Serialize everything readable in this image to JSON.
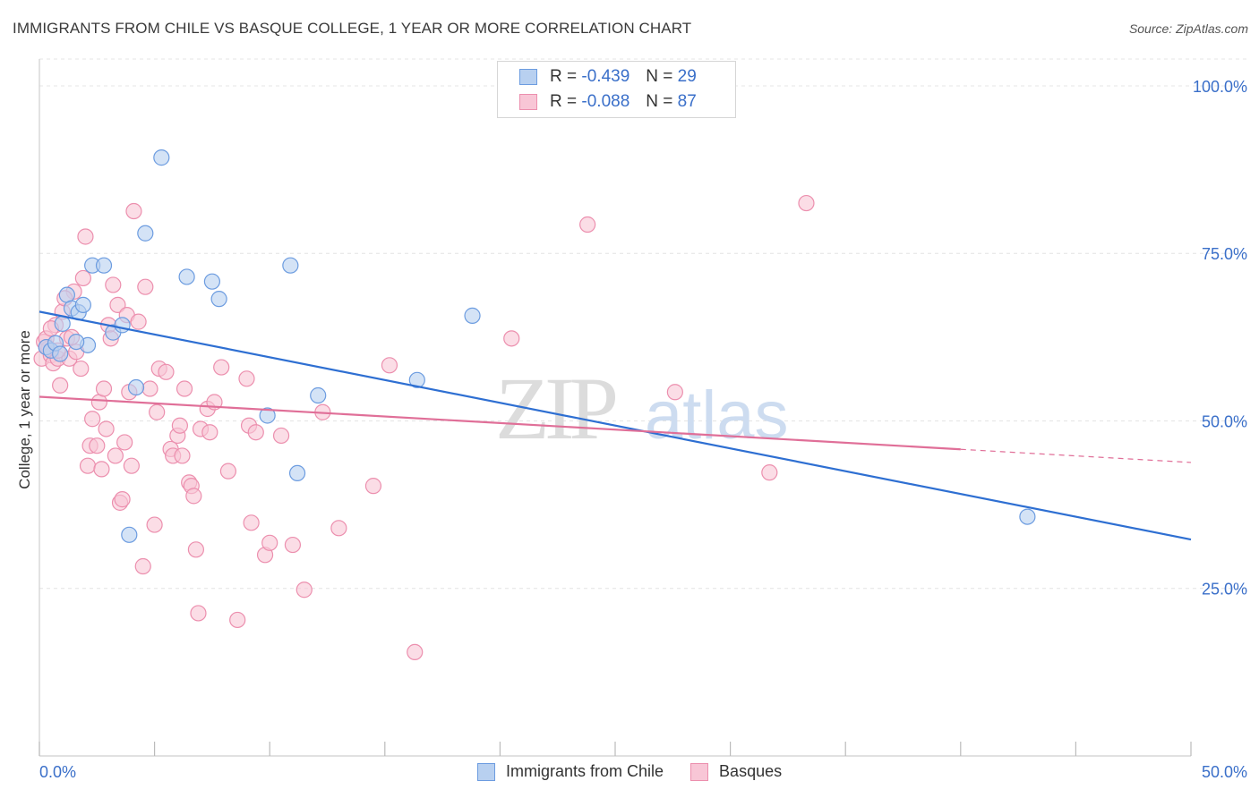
{
  "header": {
    "title": "IMMIGRANTS FROM CHILE VS BASQUE COLLEGE, 1 YEAR OR MORE CORRELATION CHART",
    "source": "Source: ZipAtlas.com"
  },
  "watermark": {
    "zip": "ZIP",
    "atlas": "atlas"
  },
  "stats": [
    {
      "r_label": "R =",
      "r_value": "-0.439",
      "n_label": "N =",
      "n_value": "29"
    },
    {
      "r_label": "R =",
      "r_value": "-0.088",
      "n_label": "N =",
      "n_value": "87"
    }
  ],
  "colors": {
    "chile_fill": "#b8d0f0",
    "chile_stroke": "#6c9ce0",
    "chile_line": "#2e6fd2",
    "basque_fill": "#f8c6d6",
    "basque_stroke": "#ec8fae",
    "basque_line": "#e06f98",
    "axis_label": "#3a6fc9",
    "grid": "#e4e4e4"
  },
  "chart_data": {
    "type": "scatter",
    "xlabel": "",
    "ylabel": "College, 1 year or more",
    "xlim": [
      0,
      50
    ],
    "ylim": [
      0,
      104
    ],
    "x_tick_labels": [
      "0.0%",
      "50.0%"
    ],
    "y_ticks": [
      25,
      50,
      75,
      100
    ],
    "y_tick_labels": [
      "25.0%",
      "50.0%",
      "75.0%",
      "100.0%"
    ],
    "grid": true,
    "legend_position": "bottom-center",
    "series": [
      {
        "name": "Immigrants from Chile",
        "trend": {
          "x": [
            0,
            50
          ],
          "y": [
            66.3,
            32.3
          ],
          "dashed_from": null
        },
        "points": [
          [
            0.3,
            61.0
          ],
          [
            0.5,
            60.5
          ],
          [
            0.7,
            61.6
          ],
          [
            1.0,
            64.5
          ],
          [
            1.2,
            68.8
          ],
          [
            1.4,
            66.8
          ],
          [
            1.7,
            66.2
          ],
          [
            1.9,
            67.3
          ],
          [
            2.1,
            61.3
          ],
          [
            2.3,
            73.2
          ],
          [
            2.8,
            73.2
          ],
          [
            3.2,
            63.2
          ],
          [
            3.6,
            64.3
          ],
          [
            4.2,
            55.0
          ],
          [
            4.6,
            78.0
          ],
          [
            5.3,
            89.3
          ],
          [
            6.4,
            71.5
          ],
          [
            7.5,
            70.8
          ],
          [
            7.8,
            68.2
          ],
          [
            9.9,
            50.8
          ],
          [
            10.9,
            73.2
          ],
          [
            11.2,
            42.2
          ],
          [
            12.1,
            53.8
          ],
          [
            16.4,
            56.1
          ],
          [
            18.8,
            65.7
          ],
          [
            42.9,
            35.7
          ],
          [
            3.9,
            33.0
          ],
          [
            1.6,
            61.8
          ],
          [
            0.9,
            60.0
          ]
        ]
      },
      {
        "name": "Basques",
        "trend": {
          "x": [
            0,
            50
          ],
          "y": [
            53.6,
            43.8
          ],
          "dashed_from": 40
        },
        "points": [
          [
            0.1,
            59.3
          ],
          [
            0.2,
            61.8
          ],
          [
            0.3,
            62.3
          ],
          [
            0.4,
            60.8
          ],
          [
            0.5,
            59.8
          ],
          [
            0.6,
            58.6
          ],
          [
            0.7,
            64.3
          ],
          [
            0.8,
            59.3
          ],
          [
            0.9,
            55.3
          ],
          [
            1.0,
            66.3
          ],
          [
            1.2,
            62.3
          ],
          [
            1.3,
            59.3
          ],
          [
            1.5,
            69.3
          ],
          [
            1.6,
            60.3
          ],
          [
            1.8,
            57.8
          ],
          [
            1.9,
            71.3
          ],
          [
            2.0,
            77.5
          ],
          [
            2.1,
            43.3
          ],
          [
            2.2,
            46.3
          ],
          [
            2.3,
            50.3
          ],
          [
            2.5,
            46.3
          ],
          [
            2.6,
            52.8
          ],
          [
            2.7,
            42.8
          ],
          [
            2.8,
            54.8
          ],
          [
            2.9,
            48.8
          ],
          [
            3.0,
            64.3
          ],
          [
            3.1,
            62.3
          ],
          [
            3.2,
            70.3
          ],
          [
            3.3,
            44.8
          ],
          [
            3.4,
            67.3
          ],
          [
            3.5,
            37.8
          ],
          [
            3.6,
            38.3
          ],
          [
            3.7,
            46.8
          ],
          [
            3.8,
            65.8
          ],
          [
            3.9,
            54.3
          ],
          [
            4.0,
            43.3
          ],
          [
            4.1,
            81.3
          ],
          [
            4.3,
            64.8
          ],
          [
            4.5,
            28.3
          ],
          [
            4.6,
            70.0
          ],
          [
            4.8,
            54.8
          ],
          [
            5.0,
            34.5
          ],
          [
            5.1,
            51.3
          ],
          [
            5.2,
            57.8
          ],
          [
            5.5,
            57.3
          ],
          [
            5.7,
            45.8
          ],
          [
            5.8,
            44.8
          ],
          [
            6.0,
            47.8
          ],
          [
            6.1,
            49.3
          ],
          [
            6.2,
            44.8
          ],
          [
            6.3,
            54.8
          ],
          [
            6.5,
            40.8
          ],
          [
            6.6,
            40.3
          ],
          [
            6.7,
            38.8
          ],
          [
            6.8,
            30.8
          ],
          [
            6.9,
            21.3
          ],
          [
            7.0,
            48.8
          ],
          [
            7.3,
            51.8
          ],
          [
            7.4,
            48.3
          ],
          [
            7.6,
            52.8
          ],
          [
            7.9,
            58.0
          ],
          [
            8.2,
            42.5
          ],
          [
            8.6,
            20.3
          ],
          [
            9.0,
            56.3
          ],
          [
            9.1,
            49.3
          ],
          [
            9.2,
            34.8
          ],
          [
            9.4,
            48.3
          ],
          [
            9.8,
            30.0
          ],
          [
            10.0,
            31.8
          ],
          [
            10.5,
            47.8
          ],
          [
            11.0,
            31.5
          ],
          [
            11.5,
            24.8
          ],
          [
            12.3,
            51.3
          ],
          [
            13.0,
            34.0
          ],
          [
            14.5,
            40.3
          ],
          [
            15.2,
            58.3
          ],
          [
            16.3,
            15.5
          ],
          [
            20.5,
            62.3
          ],
          [
            23.8,
            79.3
          ],
          [
            27.6,
            54.3
          ],
          [
            31.7,
            42.3
          ],
          [
            33.3,
            82.5
          ],
          [
            0.5,
            63.8
          ],
          [
            1.1,
            68.3
          ],
          [
            1.4,
            62.5
          ],
          [
            0.3,
            61.0
          ],
          [
            0.8,
            60.5
          ]
        ]
      }
    ]
  }
}
